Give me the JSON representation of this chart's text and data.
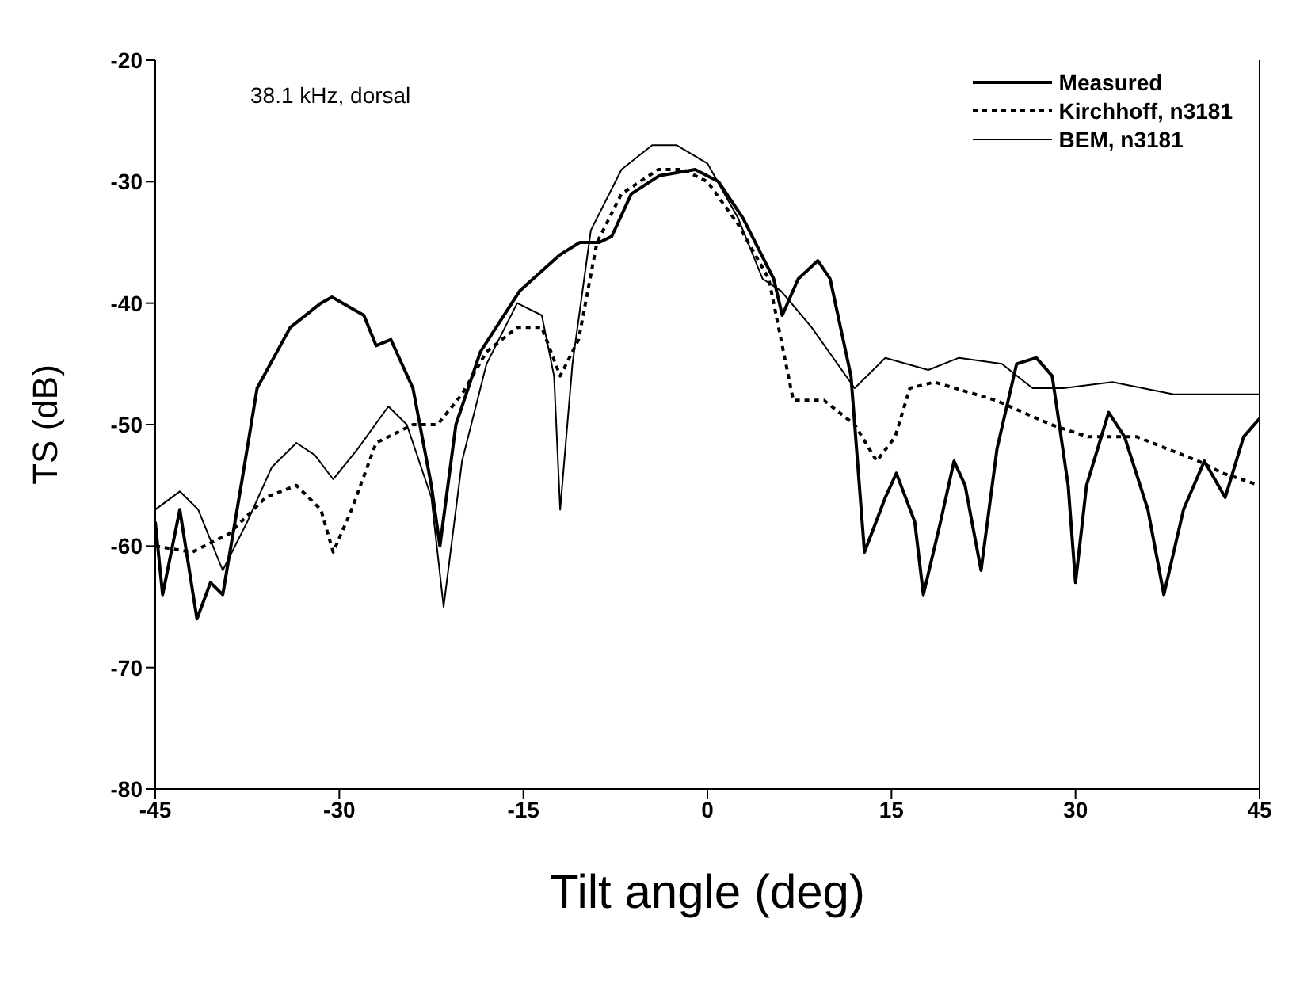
{
  "chart_data": {
    "type": "line",
    "xlabel": "Tilt angle (deg)",
    "ylabel": "TS (dB)",
    "annotations": [
      "38.1 kHz, dorsal"
    ],
    "xlim": [
      -45,
      45
    ],
    "xticks": [
      -45,
      -30,
      -15,
      0,
      15,
      30,
      45
    ],
    "ylim": [
      -80,
      -20
    ],
    "yticks": [
      -80,
      -70,
      -60,
      -50,
      -40,
      -30,
      -20
    ],
    "grid": false,
    "legend": "top right",
    "marker": "none",
    "series": [
      {
        "name": "Measured",
        "color": "#000000",
        "line_style": "solid",
        "x": [
          -45,
          -44.4,
          -43,
          -41.6,
          -40.5,
          -39.5,
          -38,
          -36.7,
          -34,
          -31.5,
          -30.6,
          -28,
          -27,
          -25.8,
          -24,
          -22.5,
          -21.8,
          -20.5,
          -18.5,
          -15.3,
          -12,
          -10.4,
          -8.8,
          -7.8,
          -6.2,
          -3.9,
          -1,
          0.9,
          2.9,
          5.4,
          6.1,
          7.4,
          9,
          10,
          11.7,
          12.8,
          14.5,
          15.4,
          16.9,
          17.6,
          19,
          20.1,
          21,
          22.3,
          23.6,
          25.2,
          26.8,
          28.1,
          29.4,
          30,
          30.9,
          32.7,
          34,
          35.9,
          37.2,
          38.8,
          40.5,
          42.2,
          43.7,
          45
        ],
        "values": [
          -58,
          -64,
          -57,
          -66,
          -63,
          -64,
          -55,
          -47,
          -42,
          -40,
          -39.5,
          -41,
          -43.5,
          -43,
          -47,
          -55,
          -60,
          -50,
          -44,
          -39,
          -36,
          -35,
          -35,
          -34.5,
          -31,
          -29.5,
          -29,
          -30,
          -33,
          -38,
          -41,
          -38,
          -36.5,
          -38,
          -46,
          -60.5,
          -56,
          -54,
          -58,
          -64,
          -58,
          -53,
          -55,
          -62,
          -52,
          -45,
          -44.5,
          -46,
          -55,
          -63,
          -55,
          -49,
          -51,
          -57,
          -64,
          -57,
          -53,
          -56,
          -51,
          -49.5
        ]
      },
      {
        "name": "Kirchhoff, n3181",
        "color": "#000000",
        "line_style": "dotted",
        "x": [
          -45,
          -42,
          -39,
          -36,
          -33.5,
          -31.5,
          -30.5,
          -29,
          -27,
          -24,
          -22,
          -20,
          -18,
          -15.5,
          -13.5,
          -12,
          -10.5,
          -9,
          -7,
          -4,
          -2,
          0,
          2.5,
          5,
          6,
          7,
          9.5,
          12,
          13.8,
          15.3,
          16.5,
          18.5,
          23.5,
          28,
          31,
          35,
          40,
          42,
          45
        ],
        "values": [
          -60,
          -60.5,
          -59,
          -56,
          -55,
          -57,
          -60.5,
          -57,
          -51.5,
          -50,
          -50,
          -47.5,
          -44,
          -42,
          -42,
          -46,
          -43,
          -35,
          -31,
          -29,
          -29,
          -30,
          -33.5,
          -38,
          -43,
          -48,
          -48,
          -50,
          -53,
          -51,
          -47,
          -46.5,
          -48,
          -50,
          -51,
          -51,
          -53,
          -54,
          -55
        ]
      },
      {
        "name": "BEM, n3181",
        "color": "#000000",
        "line_style": "solid",
        "x": [
          -45,
          -43,
          -41.5,
          -39.5,
          -37.5,
          -35.5,
          -33.5,
          -32,
          -30.5,
          -28.5,
          -26,
          -24.5,
          -22.5,
          -21.5,
          -20,
          -18,
          -15.5,
          -13.5,
          -12.5,
          -12,
          -11,
          -9.5,
          -7,
          -4.5,
          -2.5,
          0,
          2.5,
          4.5,
          6,
          8.5,
          12,
          14.5,
          18,
          20.5,
          24,
          26.5,
          29,
          33,
          38,
          45
        ],
        "values": [
          -57,
          -55.5,
          -57,
          -62,
          -58,
          -53.5,
          -51.5,
          -52.5,
          -54.5,
          -52,
          -48.5,
          -50,
          -56,
          -65,
          -53,
          -45,
          -40,
          -41,
          -46,
          -57,
          -45,
          -34,
          -29,
          -27,
          -27,
          -28.5,
          -33,
          -38,
          -39,
          -42,
          -47,
          -44.5,
          -45.5,
          -44.5,
          -45,
          -47,
          -47,
          -46.5,
          -47.5,
          -47.5
        ]
      }
    ]
  }
}
